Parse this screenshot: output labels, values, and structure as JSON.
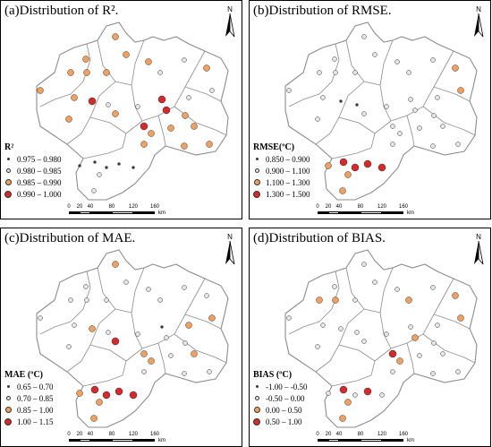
{
  "panels": [
    {
      "id": "a",
      "title": "(a)Distribution of R².",
      "legend_title": "R²",
      "legend": [
        {
          "label": "0.975 – 0.980",
          "size": "tiny",
          "color": "#3a3a3a"
        },
        {
          "label": "0.980 – 0.985",
          "size": "small",
          "color": "#e6e6e6"
        },
        {
          "label": "0.985 – 0.990",
          "size": "med",
          "color": "#f0a060"
        },
        {
          "label": "0.990 – 1.000",
          "size": "large",
          "color": "#d42a2a"
        }
      ],
      "stations": [
        {
          "pos": [
            128,
            40
          ],
          "cls": 2
        },
        {
          "pos": [
            140,
            60
          ],
          "cls": 2
        },
        {
          "pos": [
            95,
            65
          ],
          "cls": 2
        },
        {
          "pos": [
            78,
            80
          ],
          "cls": 2
        },
        {
          "pos": [
            96,
            80
          ],
          "cls": 2
        },
        {
          "pos": [
            118,
            80
          ],
          "cls": 2
        },
        {
          "pos": [
            165,
            68
          ],
          "cls": 2
        },
        {
          "pos": [
            178,
            80
          ],
          "cls": 1
        },
        {
          "pos": [
            205,
            66
          ],
          "cls": 1
        },
        {
          "pos": [
            230,
            75
          ],
          "cls": 2
        },
        {
          "pos": [
            44,
            100
          ],
          "cls": 2
        },
        {
          "pos": [
            82,
            108
          ],
          "cls": 2
        },
        {
          "pos": [
            102,
            112
          ],
          "cls": 3
        },
        {
          "pos": [
            120,
            116
          ],
          "cls": 1
        },
        {
          "pos": [
            128,
            126
          ],
          "cls": 2
        },
        {
          "pos": [
            153,
            118
          ],
          "cls": 1
        },
        {
          "pos": [
            180,
            110
          ],
          "cls": 3
        },
        {
          "pos": [
            185,
            122
          ],
          "cls": 3
        },
        {
          "pos": [
            210,
            108
          ],
          "cls": 1
        },
        {
          "pos": [
            236,
            100
          ],
          "cls": 1
        },
        {
          "pos": [
            76,
            132
          ],
          "cls": 2
        },
        {
          "pos": [
            160,
            140
          ],
          "cls": 3
        },
        {
          "pos": [
            168,
            148
          ],
          "cls": 2
        },
        {
          "pos": [
            190,
            142
          ],
          "cls": 2
        },
        {
          "pos": [
            206,
            128
          ],
          "cls": 2
        },
        {
          "pos": [
            216,
            140
          ],
          "cls": 2
        },
        {
          "pos": [
            233,
            160
          ],
          "cls": 2
        },
        {
          "pos": [
            160,
            160
          ],
          "cls": 2
        },
        {
          "pos": [
            205,
            162
          ],
          "cls": 2
        },
        {
          "pos": [
            105,
            180
          ],
          "cls": 0
        },
        {
          "pos": [
            118,
            186
          ],
          "cls": 0
        },
        {
          "pos": [
            132,
            182
          ],
          "cls": 0
        },
        {
          "pos": [
            148,
            186
          ],
          "cls": 0
        },
        {
          "pos": [
            110,
            194
          ],
          "cls": 1
        },
        {
          "pos": [
            104,
            212
          ],
          "cls": 1
        },
        {
          "pos": [
            88,
            184
          ],
          "cls": 0
        }
      ]
    },
    {
      "id": "b",
      "title": "(b)Distribution of RMSE.",
      "legend_title": "RMSE(ºC)",
      "legend": [
        {
          "label": "0.850 – 0.900",
          "size": "tiny",
          "color": "#3a3a3a"
        },
        {
          "label": "0.900 – 1.100",
          "size": "small",
          "color": "#e6e6e6"
        },
        {
          "label": "1.100 – 1.300",
          "size": "med",
          "color": "#f0a060"
        },
        {
          "label": "1.300 – 1.500",
          "size": "large",
          "color": "#d42a2a"
        }
      ],
      "stations": [
        {
          "pos": [
            128,
            40
          ],
          "cls": 1
        },
        {
          "pos": [
            140,
            60
          ],
          "cls": 1
        },
        {
          "pos": [
            95,
            65
          ],
          "cls": 1
        },
        {
          "pos": [
            78,
            80
          ],
          "cls": 1
        },
        {
          "pos": [
            96,
            80
          ],
          "cls": 1
        },
        {
          "pos": [
            118,
            80
          ],
          "cls": 1
        },
        {
          "pos": [
            165,
            68
          ],
          "cls": 1
        },
        {
          "pos": [
            178,
            80
          ],
          "cls": 1
        },
        {
          "pos": [
            205,
            66
          ],
          "cls": 1
        },
        {
          "pos": [
            230,
            75
          ],
          "cls": 2
        },
        {
          "pos": [
            44,
            100
          ],
          "cls": 1
        },
        {
          "pos": [
            82,
            108
          ],
          "cls": 1
        },
        {
          "pos": [
            102,
            112
          ],
          "cls": 0
        },
        {
          "pos": [
            120,
            116
          ],
          "cls": 0
        },
        {
          "pos": [
            128,
            126
          ],
          "cls": 1
        },
        {
          "pos": [
            153,
            118
          ],
          "cls": 1
        },
        {
          "pos": [
            180,
            110
          ],
          "cls": 1
        },
        {
          "pos": [
            185,
            122
          ],
          "cls": 1
        },
        {
          "pos": [
            210,
            108
          ],
          "cls": 1
        },
        {
          "pos": [
            236,
            100
          ],
          "cls": 2
        },
        {
          "pos": [
            76,
            132
          ],
          "cls": 1
        },
        {
          "pos": [
            160,
            140
          ],
          "cls": 1
        },
        {
          "pos": [
            168,
            148
          ],
          "cls": 1
        },
        {
          "pos": [
            190,
            142
          ],
          "cls": 1
        },
        {
          "pos": [
            206,
            128
          ],
          "cls": 1
        },
        {
          "pos": [
            216,
            140
          ],
          "cls": 1
        },
        {
          "pos": [
            233,
            160
          ],
          "cls": 1
        },
        {
          "pos": [
            160,
            160
          ],
          "cls": 1
        },
        {
          "pos": [
            205,
            162
          ],
          "cls": 1
        },
        {
          "pos": [
            105,
            180
          ],
          "cls": 3
        },
        {
          "pos": [
            118,
            186
          ],
          "cls": 3
        },
        {
          "pos": [
            132,
            182
          ],
          "cls": 3
        },
        {
          "pos": [
            148,
            186
          ],
          "cls": 3
        },
        {
          "pos": [
            110,
            194
          ],
          "cls": 2
        },
        {
          "pos": [
            104,
            212
          ],
          "cls": 2
        },
        {
          "pos": [
            88,
            184
          ],
          "cls": 2
        }
      ]
    },
    {
      "id": "c",
      "title": "(c)Distribution of MAE.",
      "legend_title": "MAE (ºC)",
      "legend": [
        {
          "label": "0.65 – 0.70",
          "size": "tiny",
          "color": "#3a3a3a"
        },
        {
          "label": "0.70 – 0.85",
          "size": "small",
          "color": "#e6e6e6"
        },
        {
          "label": "0.85 – 1.00",
          "size": "med",
          "color": "#f0a060"
        },
        {
          "label": "1.00 – 1.15",
          "size": "large",
          "color": "#d42a2a"
        }
      ],
      "stations": [
        {
          "pos": [
            128,
            40
          ],
          "cls": 2
        },
        {
          "pos": [
            140,
            60
          ],
          "cls": 1
        },
        {
          "pos": [
            95,
            65
          ],
          "cls": 1
        },
        {
          "pos": [
            78,
            80
          ],
          "cls": 1
        },
        {
          "pos": [
            96,
            80
          ],
          "cls": 1
        },
        {
          "pos": [
            118,
            80
          ],
          "cls": 1
        },
        {
          "pos": [
            165,
            68
          ],
          "cls": 1
        },
        {
          "pos": [
            178,
            80
          ],
          "cls": 1
        },
        {
          "pos": [
            205,
            66
          ],
          "cls": 1
        },
        {
          "pos": [
            230,
            75
          ],
          "cls": 1
        },
        {
          "pos": [
            44,
            100
          ],
          "cls": 1
        },
        {
          "pos": [
            82,
            108
          ],
          "cls": 1
        },
        {
          "pos": [
            102,
            112
          ],
          "cls": 2
        },
        {
          "pos": [
            120,
            116
          ],
          "cls": 1
        },
        {
          "pos": [
            128,
            126
          ],
          "cls": 3
        },
        {
          "pos": [
            153,
            118
          ],
          "cls": 1
        },
        {
          "pos": [
            180,
            110
          ],
          "cls": 0
        },
        {
          "pos": [
            185,
            122
          ],
          "cls": 1
        },
        {
          "pos": [
            210,
            108
          ],
          "cls": 2
        },
        {
          "pos": [
            236,
            100
          ],
          "cls": 2
        },
        {
          "pos": [
            76,
            132
          ],
          "cls": 1
        },
        {
          "pos": [
            160,
            140
          ],
          "cls": 2
        },
        {
          "pos": [
            168,
            148
          ],
          "cls": 2
        },
        {
          "pos": [
            190,
            142
          ],
          "cls": 1
        },
        {
          "pos": [
            206,
            128
          ],
          "cls": 1
        },
        {
          "pos": [
            216,
            140
          ],
          "cls": 2
        },
        {
          "pos": [
            233,
            160
          ],
          "cls": 1
        },
        {
          "pos": [
            160,
            160
          ],
          "cls": 1
        },
        {
          "pos": [
            205,
            162
          ],
          "cls": 1
        },
        {
          "pos": [
            105,
            180
          ],
          "cls": 3
        },
        {
          "pos": [
            118,
            186
          ],
          "cls": 3
        },
        {
          "pos": [
            132,
            182
          ],
          "cls": 3
        },
        {
          "pos": [
            148,
            186
          ],
          "cls": 3
        },
        {
          "pos": [
            110,
            194
          ],
          "cls": 2
        },
        {
          "pos": [
            104,
            212
          ],
          "cls": 2
        },
        {
          "pos": [
            88,
            184
          ],
          "cls": 2
        }
      ]
    },
    {
      "id": "d",
      "title": "(d)Distribution of BIAS.",
      "legend_title": "BIAS (ºC)",
      "legend": [
        {
          "label": "-1.00 – -0.50",
          "size": "tiny",
          "color": "#3a3a3a"
        },
        {
          "label": "-0.50 – 0.00",
          "size": "small",
          "color": "#e6e6e6"
        },
        {
          "label": "0.00 – 0.50",
          "size": "med",
          "color": "#f0a060"
        },
        {
          "label": "0.50 – 1.00",
          "size": "large",
          "color": "#d42a2a"
        }
      ],
      "stations": [
        {
          "pos": [
            128,
            40
          ],
          "cls": 1
        },
        {
          "pos": [
            140,
            60
          ],
          "cls": 1
        },
        {
          "pos": [
            95,
            65
          ],
          "cls": 1
        },
        {
          "pos": [
            78,
            80
          ],
          "cls": 2
        },
        {
          "pos": [
            96,
            80
          ],
          "cls": 2
        },
        {
          "pos": [
            118,
            80
          ],
          "cls": 1
        },
        {
          "pos": [
            165,
            68
          ],
          "cls": 1
        },
        {
          "pos": [
            178,
            80
          ],
          "cls": 2
        },
        {
          "pos": [
            205,
            66
          ],
          "cls": 1
        },
        {
          "pos": [
            230,
            75
          ],
          "cls": 2
        },
        {
          "pos": [
            44,
            100
          ],
          "cls": 1
        },
        {
          "pos": [
            82,
            108
          ],
          "cls": 1
        },
        {
          "pos": [
            102,
            112
          ],
          "cls": 1
        },
        {
          "pos": [
            120,
            116
          ],
          "cls": 1
        },
        {
          "pos": [
            128,
            126
          ],
          "cls": 1
        },
        {
          "pos": [
            153,
            118
          ],
          "cls": 1
        },
        {
          "pos": [
            180,
            110
          ],
          "cls": 1
        },
        {
          "pos": [
            185,
            122
          ],
          "cls": 2
        },
        {
          "pos": [
            210,
            108
          ],
          "cls": 1
        },
        {
          "pos": [
            236,
            100
          ],
          "cls": 2
        },
        {
          "pos": [
            76,
            132
          ],
          "cls": 1
        },
        {
          "pos": [
            160,
            140
          ],
          "cls": 3
        },
        {
          "pos": [
            168,
            148
          ],
          "cls": 2
        },
        {
          "pos": [
            190,
            142
          ],
          "cls": 1
        },
        {
          "pos": [
            206,
            128
          ],
          "cls": 1
        },
        {
          "pos": [
            216,
            140
          ],
          "cls": 1
        },
        {
          "pos": [
            233,
            160
          ],
          "cls": 1
        },
        {
          "pos": [
            160,
            160
          ],
          "cls": 1
        },
        {
          "pos": [
            205,
            162
          ],
          "cls": 1
        },
        {
          "pos": [
            105,
            180
          ],
          "cls": 3
        },
        {
          "pos": [
            118,
            186
          ],
          "cls": 1
        },
        {
          "pos": [
            132,
            182
          ],
          "cls": 3
        },
        {
          "pos": [
            148,
            186
          ],
          "cls": 1
        },
        {
          "pos": [
            110,
            194
          ],
          "cls": 2
        },
        {
          "pos": [
            104,
            212
          ],
          "cls": 2
        },
        {
          "pos": [
            88,
            184
          ],
          "cls": 1
        }
      ]
    }
  ],
  "scale_ticks": [
    "0",
    "20",
    "40",
    "80",
    "120",
    "160"
  ],
  "scale_unit": "km",
  "north_label": "N",
  "colors": {
    "tiny": "#3a3a3a",
    "small": "#e6e6e6",
    "med": "#f0a060",
    "large": "#d42a2a",
    "boundary": "#8c8c8c"
  }
}
